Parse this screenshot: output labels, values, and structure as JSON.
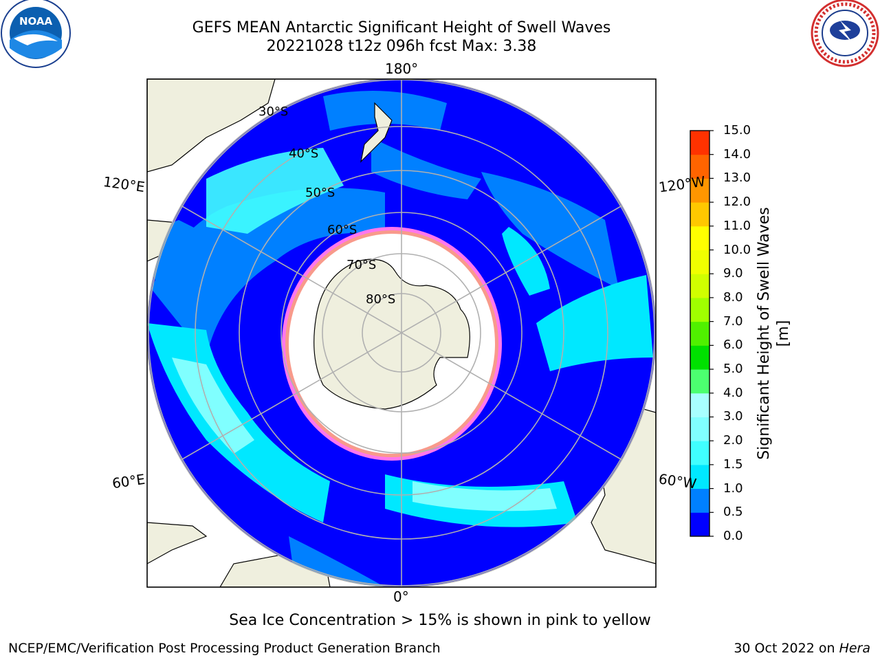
{
  "header": {
    "title_line1": "GEFS MEAN Antarctic Significant Height of Swell Waves",
    "title_line2": "20221028 t12z 096h fcst   Max: 3.38"
  },
  "logos": {
    "left": "NOAA",
    "right": "NATIONAL WEATHER SERVICE"
  },
  "map": {
    "projection": "south-polar-stereographic",
    "meridian_labels": [
      "180°",
      "120°E",
      "120°W",
      "60°E",
      "60°W",
      "0°"
    ],
    "latitude_labels": [
      "30°S",
      "40°S",
      "50°S",
      "60°S",
      "70°S",
      "80°S"
    ]
  },
  "colorbar": {
    "label": "Significant Height of Swell Waves [m]",
    "ticks": [
      "0.0",
      "0.5",
      "1.0",
      "1.5",
      "2.0",
      "3.0",
      "4.0",
      "5.0",
      "6.0",
      "7.0",
      "8.0",
      "9.0",
      "10.0",
      "11.0",
      "12.0",
      "13.0",
      "14.0",
      "15.0"
    ],
    "colors": [
      "#0000ff",
      "#0080ff",
      "#00e8ff",
      "#40ffff",
      "#80ffff",
      "#a8ffff",
      "#4cff70",
      "#00e000",
      "#50f000",
      "#a0ff00",
      "#d0ff00",
      "#f0ff00",
      "#ffff00",
      "#ffc800",
      "#ff9600",
      "#ff6400",
      "#ff3200",
      "#ff0000"
    ]
  },
  "footer": {
    "note": "Sea Ice Concentration > 15% is shown in pink to yellow",
    "left": "NCEP/EMC/Verification Post Processing Product Generation Branch",
    "right_date": "30 Oct 2022 on ",
    "right_host": "Hera"
  }
}
